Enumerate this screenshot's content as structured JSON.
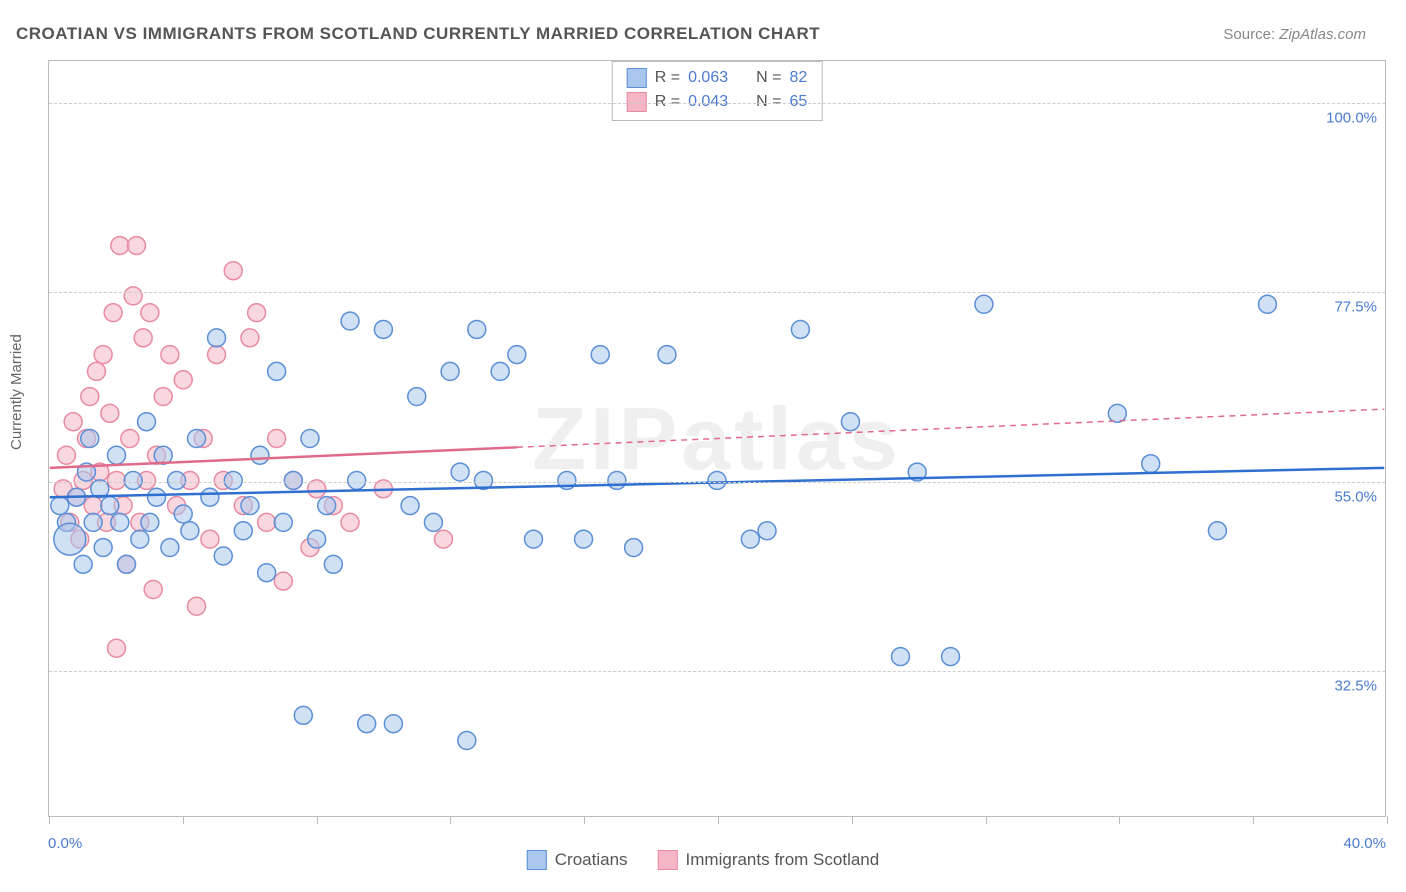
{
  "title": "CROATIAN VS IMMIGRANTS FROM SCOTLAND CURRENTLY MARRIED CORRELATION CHART",
  "source_prefix": "Source: ",
  "source_name": "ZipAtlas.com",
  "watermark": "ZIPatlas",
  "ylabel": "Currently Married",
  "xlim_min_label": "0.0%",
  "xlim_max_label": "40.0%",
  "chart": {
    "type": "scatter",
    "xlim": [
      0,
      40
    ],
    "ylim": [
      15,
      105
    ],
    "ytick_labels": [
      "32.5%",
      "55.0%",
      "77.5%",
      "100.0%"
    ],
    "ytick_values": [
      32.5,
      55.0,
      77.5,
      100.0
    ],
    "xtick_values": [
      0,
      4,
      8,
      12,
      16,
      20,
      24,
      28,
      32,
      36,
      40
    ],
    "grid_color": "#cccccc",
    "border_color": "#bbbbbb",
    "tick_label_color": "#4a7bd0",
    "series": [
      {
        "name": "Croatians",
        "legend_label": "Croatians",
        "fill": "#a9c7ec",
        "stroke": "#5c8fd6",
        "fill_opacity": 0.55,
        "marker_radius": 9,
        "R_label": "R = ",
        "R_value": "0.063",
        "N_label": "N = ",
        "N_value": "82",
        "trend": {
          "x1": 0,
          "y1": 53.0,
          "x2": 40,
          "y2": 56.5,
          "solid_until_x": 40,
          "color": "#2f6fd0"
        },
        "points": [
          [
            0.3,
            52
          ],
          [
            0.5,
            50
          ],
          [
            0.6,
            48,
            16
          ],
          [
            0.8,
            53
          ],
          [
            1.0,
            45
          ],
          [
            1.1,
            56
          ],
          [
            1.2,
            60
          ],
          [
            1.3,
            50
          ],
          [
            1.5,
            54
          ],
          [
            1.6,
            47
          ],
          [
            1.8,
            52
          ],
          [
            2.0,
            58
          ],
          [
            2.1,
            50
          ],
          [
            2.3,
            45
          ],
          [
            2.5,
            55
          ],
          [
            2.7,
            48
          ],
          [
            2.9,
            62
          ],
          [
            3.0,
            50
          ],
          [
            3.2,
            53
          ],
          [
            3.4,
            58
          ],
          [
            3.6,
            47
          ],
          [
            3.8,
            55
          ],
          [
            4.0,
            51
          ],
          [
            4.2,
            49
          ],
          [
            4.4,
            60
          ],
          [
            4.8,
            53
          ],
          [
            5.0,
            72
          ],
          [
            5.2,
            46
          ],
          [
            5.5,
            55
          ],
          [
            5.8,
            49
          ],
          [
            6.0,
            52
          ],
          [
            6.3,
            58
          ],
          [
            6.5,
            44
          ],
          [
            6.8,
            68
          ],
          [
            7.0,
            50
          ],
          [
            7.3,
            55
          ],
          [
            7.6,
            27
          ],
          [
            7.8,
            60
          ],
          [
            8.0,
            48
          ],
          [
            8.3,
            52
          ],
          [
            8.5,
            45
          ],
          [
            9.0,
            74
          ],
          [
            9.2,
            55
          ],
          [
            9.5,
            26
          ],
          [
            10.0,
            73
          ],
          [
            10.3,
            26
          ],
          [
            10.8,
            52
          ],
          [
            11.0,
            65
          ],
          [
            11.5,
            50
          ],
          [
            12.0,
            68
          ],
          [
            12.3,
            56
          ],
          [
            12.5,
            24
          ],
          [
            12.8,
            73
          ],
          [
            13.0,
            55
          ],
          [
            13.5,
            68
          ],
          [
            14.0,
            70
          ],
          [
            14.5,
            48
          ],
          [
            15.5,
            55
          ],
          [
            16.0,
            48
          ],
          [
            16.5,
            70
          ],
          [
            17.0,
            55
          ],
          [
            17.5,
            47
          ],
          [
            18.5,
            70
          ],
          [
            20.0,
            55
          ],
          [
            21.0,
            48
          ],
          [
            21.5,
            49
          ],
          [
            22.5,
            73
          ],
          [
            24.0,
            62
          ],
          [
            25.5,
            34
          ],
          [
            26.0,
            56
          ],
          [
            27.0,
            34
          ],
          [
            28.0,
            76
          ],
          [
            32.0,
            63
          ],
          [
            33.0,
            57
          ],
          [
            35.0,
            49
          ],
          [
            36.5,
            76
          ]
        ]
      },
      {
        "name": "Immigrants from Scotland",
        "legend_label": "Immigrants from Scotland",
        "fill": "#f4b6c4",
        "stroke": "#e88aa2",
        "fill_opacity": 0.55,
        "marker_radius": 9,
        "R_label": "R = ",
        "R_value": "0.043",
        "N_label": "N = ",
        "N_value": "65",
        "trend": {
          "x1": 0,
          "y1": 56.5,
          "x2": 40,
          "y2": 63.5,
          "solid_until_x": 14,
          "color": "#e06a8a"
        },
        "points": [
          [
            0.4,
            54
          ],
          [
            0.5,
            58
          ],
          [
            0.6,
            50
          ],
          [
            0.7,
            62
          ],
          [
            0.8,
            53
          ],
          [
            0.9,
            48
          ],
          [
            1.0,
            55
          ],
          [
            1.1,
            60
          ],
          [
            1.2,
            65
          ],
          [
            1.3,
            52
          ],
          [
            1.4,
            68
          ],
          [
            1.5,
            56
          ],
          [
            1.6,
            70
          ],
          [
            1.7,
            50
          ],
          [
            1.8,
            63
          ],
          [
            1.9,
            75
          ],
          [
            2.0,
            55
          ],
          [
            2.1,
            83
          ],
          [
            2.2,
            52
          ],
          [
            2.3,
            45
          ],
          [
            2.4,
            60
          ],
          [
            2.5,
            77
          ],
          [
            2.6,
            83
          ],
          [
            2.7,
            50
          ],
          [
            2.8,
            72
          ],
          [
            2.9,
            55
          ],
          [
            3.0,
            75
          ],
          [
            3.1,
            42
          ],
          [
            3.2,
            58
          ],
          [
            3.4,
            65
          ],
          [
            3.6,
            70
          ],
          [
            3.8,
            52
          ],
          [
            4.0,
            67
          ],
          [
            4.2,
            55
          ],
          [
            4.4,
            40
          ],
          [
            4.6,
            60
          ],
          [
            4.8,
            48
          ],
          [
            5.0,
            70
          ],
          [
            5.2,
            55
          ],
          [
            5.5,
            80
          ],
          [
            5.8,
            52
          ],
          [
            6.0,
            72
          ],
          [
            6.2,
            75
          ],
          [
            6.5,
            50
          ],
          [
            6.8,
            60
          ],
          [
            7.0,
            43
          ],
          [
            7.3,
            55
          ],
          [
            7.8,
            47
          ],
          [
            8.0,
            54
          ],
          [
            8.5,
            52
          ],
          [
            9.0,
            50
          ],
          [
            10.0,
            54
          ],
          [
            11.8,
            48
          ],
          [
            2.0,
            35
          ]
        ]
      }
    ]
  }
}
